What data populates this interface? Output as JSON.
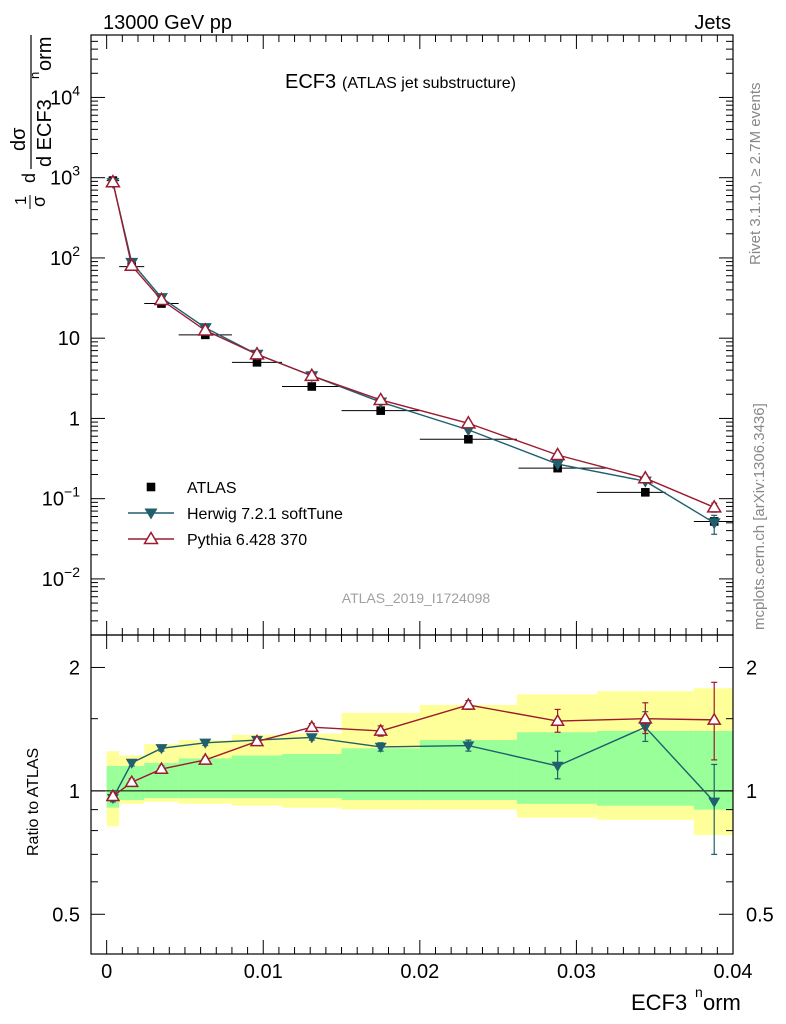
{
  "header": {
    "left": "13000 GeV pp",
    "right": "Jets"
  },
  "side_labels": {
    "rivet": "Rivet 3.1.10, ≥ 2.7M events",
    "mcplots": "mcplots.cern.ch [arXiv:1306.3436]"
  },
  "chart_data": [
    {
      "panel": "main",
      "type": "scatter",
      "title": "ECF3",
      "subtitle": "(ATLAS jet substructure)",
      "watermark": "ATLAS_2019_I1724098",
      "ylabel_top": "dσ",
      "ylabel_bottom": "d ECF3",
      "ylabel_sup": "n",
      "ylabel_tail": "orm",
      "ylabel_prefix_num": "1",
      "ylabel_prefix_den": "σ",
      "ylabel_d": "d",
      "yscale": "log",
      "ylim": [
        0.002,
        60000
      ],
      "xlim": [
        -0.001,
        0.04
      ],
      "yticks": [
        {
          "value": 0.01,
          "label_base": "10",
          "label_exp": "−2"
        },
        {
          "value": 0.1,
          "label_base": "10",
          "label_exp": "−1"
        },
        {
          "value": 1,
          "label_base": "1",
          "label_exp": ""
        },
        {
          "value": 10,
          "label_base": "10",
          "label_exp": ""
        },
        {
          "value": 100,
          "label_base": "10",
          "label_exp": "2"
        },
        {
          "value": 1000,
          "label_base": "10",
          "label_exp": "3"
        },
        {
          "value": 10000,
          "label_base": "10",
          "label_exp": "4"
        }
      ],
      "legend_position": "bottom-left",
      "series": [
        {
          "name": "ATLAS",
          "marker": "square",
          "color": "#000000",
          "x": [
            0.0004,
            0.0016,
            0.0035,
            0.0063,
            0.0096,
            0.0131,
            0.0175,
            0.0231,
            0.0288,
            0.0344,
            0.0388
          ],
          "y": [
            920,
            78,
            27,
            11,
            5.0,
            2.5,
            1.25,
            0.55,
            0.24,
            0.12,
            0.052
          ],
          "xerr_low": [
            0.0004,
            0.0008,
            0.0011,
            0.0017,
            0.0016,
            0.0019,
            0.0025,
            0.0031,
            0.0025,
            0.0031,
            0.0013
          ],
          "xerr_high": [
            0.0004,
            0.0008,
            0.0011,
            0.0017,
            0.0016,
            0.0019,
            0.0025,
            0.0031,
            0.0031,
            0.0013,
            0.0012
          ]
        },
        {
          "name": "Herwig 7.2.1 softTune",
          "marker": "triangle-down",
          "color": "#1f5f6e",
          "x": [
            0.0004,
            0.0016,
            0.0035,
            0.0063,
            0.0096,
            0.0131,
            0.0175,
            0.0231,
            0.0288,
            0.0344,
            0.0388
          ],
          "y": [
            870,
            88,
            32,
            13.5,
            6.3,
            3.4,
            1.6,
            0.72,
            0.27,
            0.165,
            0.05
          ],
          "yerr_low": [
            0,
            0,
            0,
            0,
            0,
            0,
            0,
            0,
            0,
            0,
            0.014
          ],
          "yerr_high": [
            0,
            0,
            0,
            0,
            0,
            0,
            0,
            0,
            0,
            0,
            0.012
          ]
        },
        {
          "name": "Pythia 6.428 370",
          "marker": "triangle-up-open",
          "color": "#9b1b30",
          "x": [
            0.0004,
            0.0016,
            0.0035,
            0.0063,
            0.0096,
            0.0131,
            0.0175,
            0.0231,
            0.0288,
            0.0344,
            0.0388
          ],
          "y": [
            880,
            80,
            30,
            12.5,
            6.3,
            3.4,
            1.7,
            0.87,
            0.35,
            0.18,
            0.078
          ],
          "yerr_low": [
            0,
            0,
            0,
            0,
            0,
            0,
            0,
            0,
            0,
            0,
            0.01
          ],
          "yerr_high": [
            0,
            0,
            0,
            0,
            0,
            0,
            0,
            0,
            0,
            0,
            0.01
          ]
        }
      ]
    },
    {
      "panel": "ratio",
      "type": "scatter",
      "ylabel": "Ratio to ATLAS",
      "yscale": "log",
      "ylim": [
        0.4,
        2.4
      ],
      "xlim": [
        -0.001,
        0.04
      ],
      "xlabel": "ECF3",
      "xlabel_sup": "n",
      "xlabel_tail": "orm",
      "yticks": [
        {
          "value": 0.5,
          "label": "0.5"
        },
        {
          "value": 1,
          "label": "1"
        },
        {
          "value": 2,
          "label": "2"
        }
      ],
      "xticks": [
        {
          "value": 0,
          "label": "0"
        },
        {
          "value": 0.01,
          "label": "0.01"
        },
        {
          "value": 0.02,
          "label": "0.02"
        },
        {
          "value": 0.03,
          "label": "0.03"
        },
        {
          "value": 0.04,
          "label": "0.04"
        }
      ],
      "bins": [
        [
          0.0,
          0.0008
        ],
        [
          0.0008,
          0.0024
        ],
        [
          0.0024,
          0.0046
        ],
        [
          0.0046,
          0.008
        ],
        [
          0.008,
          0.0112
        ],
        [
          0.0112,
          0.015
        ],
        [
          0.015,
          0.02
        ],
        [
          0.02,
          0.0262
        ],
        [
          0.0262,
          0.0313
        ],
        [
          0.0313,
          0.0375
        ],
        [
          0.0375,
          0.04
        ]
      ],
      "band_outer": {
        "color": "#ffff99",
        "low": [
          0.82,
          0.93,
          0.94,
          0.93,
          0.92,
          0.91,
          0.9,
          0.9,
          0.86,
          0.85,
          0.78
        ],
        "high": [
          1.25,
          1.22,
          1.3,
          1.33,
          1.37,
          1.38,
          1.55,
          1.62,
          1.72,
          1.75,
          1.78
        ]
      },
      "band_inner": {
        "color": "#99ff99",
        "low": [
          0.91,
          0.95,
          0.96,
          0.96,
          0.96,
          0.96,
          0.95,
          0.95,
          0.93,
          0.92,
          0.9
        ],
        "high": [
          1.15,
          1.15,
          1.17,
          1.2,
          1.22,
          1.23,
          1.27,
          1.33,
          1.39,
          1.4,
          1.4
        ]
      },
      "series": [
        {
          "name": "Herwig 7.2.1 softTune",
          "color": "#1f5f6e",
          "marker": "triangle-down",
          "x": [
            0.0004,
            0.0016,
            0.0035,
            0.0063,
            0.0096,
            0.0131,
            0.0175,
            0.0231,
            0.0288,
            0.0344,
            0.0388
          ],
          "y": [
            0.96,
            1.17,
            1.27,
            1.31,
            1.33,
            1.35,
            1.28,
            1.29,
            1.15,
            1.43,
            0.94
          ],
          "yerr_low": [
            0.02,
            0.02,
            0.02,
            0.02,
            0.02,
            0.02,
            0.03,
            0.04,
            0.08,
            0.11,
            0.24
          ],
          "yerr_high": [
            0.02,
            0.02,
            0.02,
            0.02,
            0.02,
            0.02,
            0.03,
            0.04,
            0.1,
            0.13,
            0.22
          ]
        },
        {
          "name": "Pythia 6.428 370",
          "color": "#9b1b30",
          "marker": "triangle-up-open",
          "x": [
            0.0004,
            0.0016,
            0.0035,
            0.0063,
            0.0096,
            0.0131,
            0.0175,
            0.0231,
            0.0288,
            0.0344,
            0.0388
          ],
          "y": [
            0.97,
            1.05,
            1.13,
            1.19,
            1.32,
            1.43,
            1.4,
            1.62,
            1.48,
            1.5,
            1.49
          ],
          "yerr_low": [
            0.02,
            0.02,
            0.02,
            0.02,
            0.02,
            0.03,
            0.04,
            0.04,
            0.09,
            0.12,
            0.3
          ],
          "yerr_high": [
            0.02,
            0.02,
            0.02,
            0.02,
            0.02,
            0.03,
            0.04,
            0.04,
            0.1,
            0.14,
            0.35
          ]
        }
      ]
    }
  ]
}
